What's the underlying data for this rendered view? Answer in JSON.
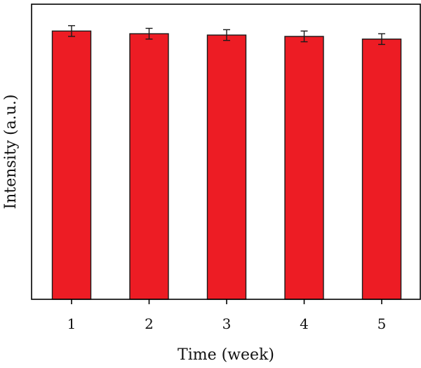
{
  "chart_data": {
    "type": "bar",
    "title": "",
    "xlabel": "Time (week)",
    "ylabel": "Intensity (a.u.)",
    "categories": [
      "1",
      "2",
      "3",
      "4",
      "5"
    ],
    "series": [
      {
        "values": [
          1.0,
          0.99,
          0.985,
          0.98,
          0.97
        ],
        "errors": [
          0.02,
          0.02,
          0.02,
          0.02,
          0.02
        ],
        "color": "#ed1c24"
      }
    ],
    "ylim": [
      0,
      1.1
    ],
    "y_ticks_labeled": false,
    "grid": false,
    "legend": "none",
    "colors": {
      "bar_fill": "#ed1c24",
      "bar_stroke": "#1a1a1a",
      "axis": "#000000"
    }
  }
}
